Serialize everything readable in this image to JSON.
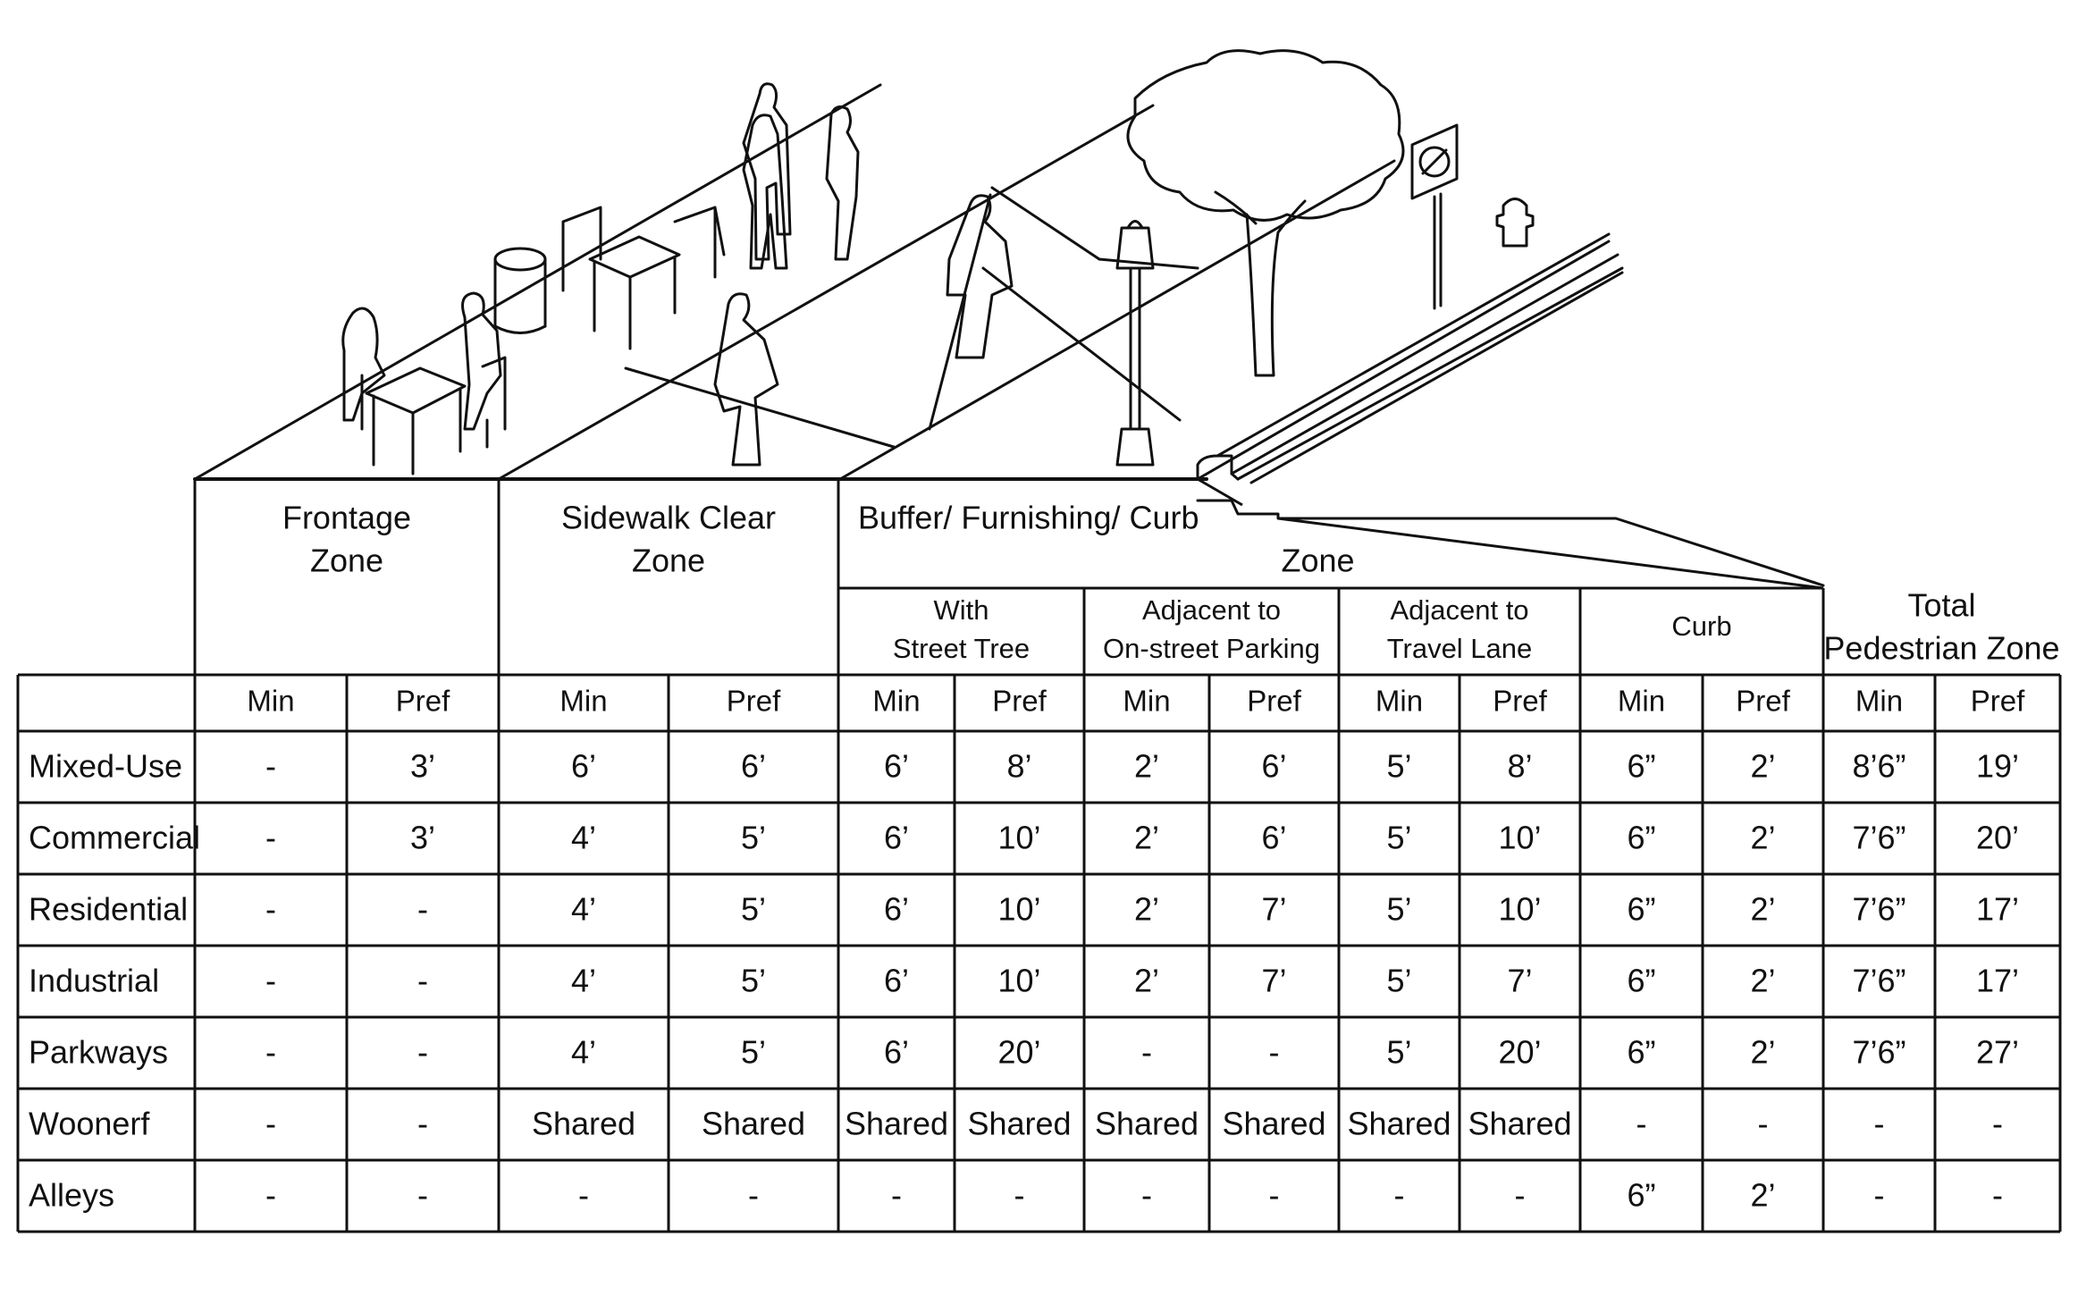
{
  "zones": {
    "frontage": [
      "Frontage",
      "Zone"
    ],
    "sidewalk": [
      "Sidewalk Clear",
      "Zone"
    ],
    "buffer": [
      "Buffer/ Furnishing/ Curb",
      "Zone"
    ],
    "street_tree": [
      "With",
      "Street Tree"
    ],
    "onstreet_parking": [
      "Adjacent to",
      "On-street Parking"
    ],
    "travel_lane": [
      "Adjacent to",
      "Travel Lane"
    ],
    "curb": [
      "Curb"
    ],
    "total": [
      "Total",
      "Pedestrian Zone"
    ]
  },
  "min_label": "Min",
  "pref_label": "Pref",
  "rows": [
    {
      "label": "Mixed-Use",
      "values": [
        "-",
        "3’",
        "6’",
        "6’",
        "6’",
        "8’",
        "2’",
        "6’",
        "5’",
        "8’",
        "6”",
        "2’",
        "8’6”",
        "19’"
      ]
    },
    {
      "label": "Commercial",
      "values": [
        "-",
        "3’",
        "4’",
        "5’",
        "6’",
        "10’",
        "2’",
        "6’",
        "5’",
        "10’",
        "6”",
        "2’",
        "7’6”",
        "20’"
      ]
    },
    {
      "label": "Residential",
      "values": [
        "-",
        "-",
        "4’",
        "5’",
        "6’",
        "10’",
        "2’",
        "7’",
        "5’",
        "10’",
        "6”",
        "2’",
        "7’6”",
        "17’"
      ]
    },
    {
      "label": "Industrial",
      "values": [
        "-",
        "-",
        "4’",
        "5’",
        "6’",
        "10’",
        "2’",
        "7’",
        "5’",
        "7’",
        "6”",
        "2’",
        "7’6”",
        "17’"
      ]
    },
    {
      "label": "Parkways",
      "values": [
        "-",
        "-",
        "4’",
        "5’",
        "6’",
        "20’",
        "-",
        "-",
        "5’",
        "20’",
        "6”",
        "2’",
        "7’6”",
        "27’"
      ]
    },
    {
      "label": "Woonerf",
      "values": [
        "-",
        "-",
        "Shared",
        "Shared",
        "Shared",
        "Shared",
        "Shared",
        "Shared",
        "Shared",
        "Shared",
        "-",
        "-",
        "-",
        "-"
      ]
    },
    {
      "label": "Alleys",
      "values": [
        "-",
        "-",
        "-",
        "-",
        "-",
        "-",
        "-",
        "-",
        "-",
        "-",
        "6”",
        "2’",
        "-",
        "-"
      ]
    }
  ]
}
